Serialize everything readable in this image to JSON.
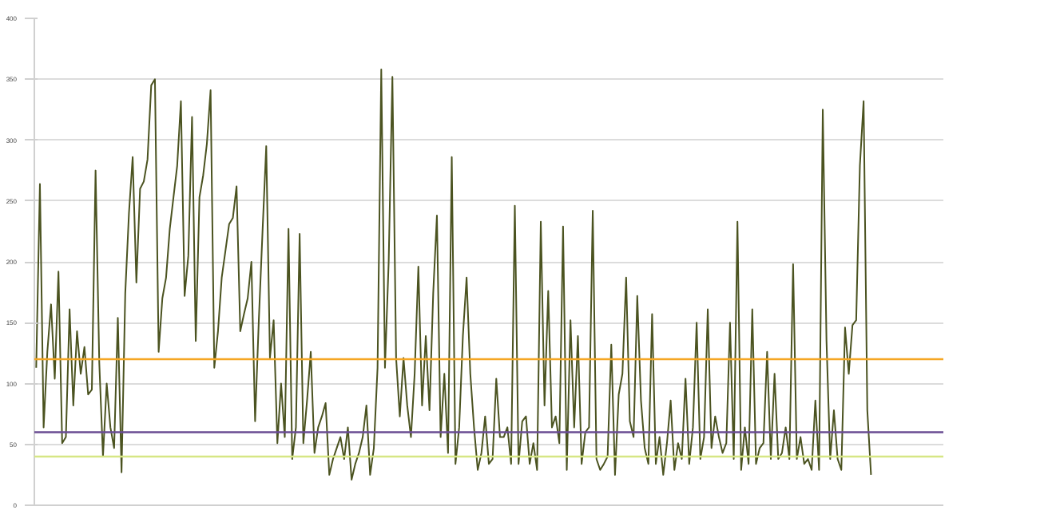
{
  "chart_data": {
    "type": "line",
    "categories": [
      null,
      null,
      null,
      null,
      null,
      null,
      null,
      null,
      null,
      null,
      null,
      null,
      null,
      null,
      null,
      null,
      null,
      null,
      null,
      null,
      null,
      null,
      null,
      null,
      null,
      null,
      null,
      null,
      null,
      null,
      null,
      null,
      null,
      null,
      null,
      null,
      null,
      null,
      null,
      null,
      null,
      null,
      null,
      null,
      null,
      null,
      null,
      null,
      null,
      null,
      null,
      null,
      null,
      null,
      null,
      null,
      null,
      null,
      null,
      null,
      null,
      null,
      null,
      null,
      null,
      null,
      null,
      null,
      null,
      null,
      null,
      null,
      null,
      null,
      null,
      null,
      null,
      null,
      null,
      null,
      null,
      null,
      null,
      null,
      null,
      null,
      null,
      null,
      null,
      null,
      null,
      null,
      null,
      null,
      null,
      null,
      null,
      null,
      null,
      null,
      null,
      null,
      null,
      null,
      null,
      null,
      null,
      null,
      null,
      null,
      null,
      null,
      null,
      null,
      null,
      null,
      null,
      null,
      null,
      null,
      null,
      null,
      null,
      null,
      null,
      null,
      null,
      null,
      null,
      null,
      null,
      null,
      null,
      null,
      null,
      null,
      null,
      null,
      null,
      null,
      null,
      null,
      null,
      null,
      null,
      null,
      null,
      null,
      null,
      null,
      null,
      null,
      null,
      null,
      null,
      null,
      null,
      null,
      null,
      null,
      null,
      null,
      null,
      null,
      null,
      null,
      null,
      null,
      null,
      null,
      null,
      null,
      null,
      null,
      null,
      null,
      null,
      null,
      null,
      null,
      null,
      null,
      null,
      null,
      null,
      null,
      null,
      null,
      null,
      null,
      null,
      null,
      null,
      null,
      null,
      null,
      null,
      null,
      null,
      null,
      null,
      null,
      null,
      null,
      null,
      null,
      null,
      null,
      null,
      null,
      null,
      null,
      null,
      null,
      null,
      null,
      null,
      null,
      null,
      null,
      null,
      null,
      null,
      null,
      null,
      null,
      null,
      null,
      null,
      null,
      null,
      null,
      null,
      null,
      null,
      null,
      null,
      null,
      null,
      null,
      null,
      null,
      null,
      null,
      null
    ],
    "series": [
      {
        "color": "#4b5320",
        "values": [
          113,
          264,
          64,
          126,
          165,
          104,
          192,
          51,
          56,
          161,
          82,
          143,
          108,
          130,
          91,
          95,
          275,
          117,
          40,
          100,
          64,
          47,
          154,
          27,
          174,
          240,
          286,
          183,
          260,
          266,
          284,
          345,
          350,
          126,
          170,
          187,
          227,
          253,
          279,
          332,
          172,
          205,
          319,
          135,
          253,
          271,
          297,
          341,
          113,
          143,
          187,
          209,
          231,
          236,
          262,
          143,
          157,
          170,
          200,
          69,
          152,
          225,
          295,
          121,
          152,
          51,
          100,
          56,
          227,
          38,
          64,
          223,
          51,
          86,
          126,
          43,
          64,
          73,
          84,
          25,
          38,
          47,
          56,
          38,
          64,
          21,
          34,
          43,
          56,
          82,
          25,
          47,
          113,
          358,
          113,
          200,
          352,
          121,
          73,
          121,
          82,
          56,
          108,
          196,
          82,
          139,
          78,
          174,
          238,
          56,
          108,
          43,
          286,
          34,
          64,
          139,
          187,
          108,
          64,
          29,
          43,
          73,
          34,
          38,
          104,
          56,
          56,
          64,
          34,
          246,
          34,
          69,
          73,
          34,
          51,
          29,
          233,
          82,
          176,
          64,
          73,
          51,
          229,
          29,
          152,
          64,
          139,
          34,
          60,
          64,
          242,
          38,
          29,
          34,
          40,
          132,
          25,
          91,
          108,
          187,
          69,
          56,
          172,
          86,
          47,
          34,
          157,
          34,
          56,
          25,
          51,
          86,
          29,
          51,
          38,
          104,
          34,
          64,
          150,
          38,
          56,
          161,
          47,
          73,
          56,
          43,
          51,
          150,
          38,
          233,
          29,
          64,
          34,
          161,
          34,
          47,
          51,
          126,
          38,
          108,
          38,
          43,
          64,
          38,
          198,
          38,
          56,
          34,
          38,
          29,
          86,
          29,
          325,
          135,
          38,
          78,
          38,
          29,
          146,
          108,
          148,
          152,
          279,
          332,
          78,
          25,
          null,
          null,
          null,
          null,
          null,
          null,
          null,
          null,
          null,
          null,
          null,
          null,
          null,
          null,
          null,
          null,
          null,
          null,
          null
        ]
      }
    ],
    "ref_lines": [
      {
        "axis": "y",
        "value": 120,
        "color": "#f5a623"
      },
      {
        "axis": "y",
        "value": 60,
        "color": "#6a4c93"
      },
      {
        "axis": "y",
        "value": 40,
        "color": "#d6e685"
      }
    ],
    "ylim": [
      0,
      400
    ],
    "yticks": [
      0,
      50,
      100,
      150,
      200,
      250,
      300,
      350,
      400
    ],
    "grid": "y",
    "tick_labels": "y"
  }
}
